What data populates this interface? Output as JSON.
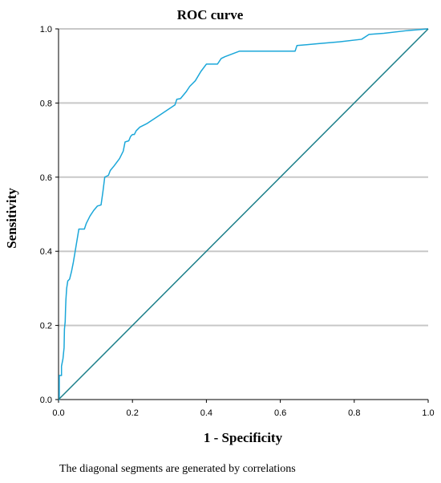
{
  "chart_data": {
    "type": "line",
    "title": "ROC curve",
    "xlabel": "1 - Specificity",
    "ylabel": "Sensitivity",
    "xlim": [
      0.0,
      1.0
    ],
    "ylim": [
      0.0,
      1.0
    ],
    "x_ticks": [
      "0.0",
      "0.2",
      "0.4",
      "0.6",
      "0.8",
      "1.0"
    ],
    "y_ticks": [
      "0.0",
      "0.2",
      "0.4",
      "0.6",
      "0.8",
      "1.0"
    ],
    "grid": "horizontal",
    "series": [
      {
        "color": "#1ba7d9",
        "points": [
          [
            0.0,
            0.0
          ],
          [
            0.002,
            0.0
          ],
          [
            0.002,
            0.065
          ],
          [
            0.008,
            0.065
          ],
          [
            0.008,
            0.09
          ],
          [
            0.012,
            0.11
          ],
          [
            0.015,
            0.14
          ],
          [
            0.016,
            0.19
          ],
          [
            0.018,
            0.21
          ],
          [
            0.019,
            0.245
          ],
          [
            0.02,
            0.27
          ],
          [
            0.022,
            0.3
          ],
          [
            0.025,
            0.32
          ],
          [
            0.03,
            0.325
          ],
          [
            0.035,
            0.345
          ],
          [
            0.04,
            0.37
          ],
          [
            0.045,
            0.4
          ],
          [
            0.05,
            0.43
          ],
          [
            0.055,
            0.46
          ],
          [
            0.07,
            0.46
          ],
          [
            0.075,
            0.475
          ],
          [
            0.085,
            0.495
          ],
          [
            0.095,
            0.51
          ],
          [
            0.105,
            0.522
          ],
          [
            0.115,
            0.525
          ],
          [
            0.12,
            0.56
          ],
          [
            0.125,
            0.6
          ],
          [
            0.135,
            0.605
          ],
          [
            0.14,
            0.618
          ],
          [
            0.15,
            0.63
          ],
          [
            0.165,
            0.65
          ],
          [
            0.175,
            0.67
          ],
          [
            0.18,
            0.695
          ],
          [
            0.19,
            0.698
          ],
          [
            0.195,
            0.71
          ],
          [
            0.2,
            0.715
          ],
          [
            0.205,
            0.715
          ],
          [
            0.21,
            0.725
          ],
          [
            0.22,
            0.735
          ],
          [
            0.24,
            0.745
          ],
          [
            0.27,
            0.765
          ],
          [
            0.3,
            0.785
          ],
          [
            0.315,
            0.795
          ],
          [
            0.32,
            0.81
          ],
          [
            0.33,
            0.812
          ],
          [
            0.345,
            0.83
          ],
          [
            0.355,
            0.845
          ],
          [
            0.37,
            0.86
          ],
          [
            0.385,
            0.885
          ],
          [
            0.4,
            0.905
          ],
          [
            0.43,
            0.905
          ],
          [
            0.44,
            0.92
          ],
          [
            0.45,
            0.925
          ],
          [
            0.49,
            0.94
          ],
          [
            0.64,
            0.94
          ],
          [
            0.645,
            0.955
          ],
          [
            0.7,
            0.96
          ],
          [
            0.76,
            0.965
          ],
          [
            0.82,
            0.972
          ],
          [
            0.84,
            0.985
          ],
          [
            0.88,
            0.988
          ],
          [
            0.94,
            0.995
          ],
          [
            1.0,
            1.0
          ]
        ]
      },
      {
        "color": "#1b7f8a",
        "points": [
          [
            0.0,
            0.0
          ],
          [
            1.0,
            1.0
          ]
        ]
      }
    ],
    "footnote": "The diagonal segments are generated by correlations"
  }
}
